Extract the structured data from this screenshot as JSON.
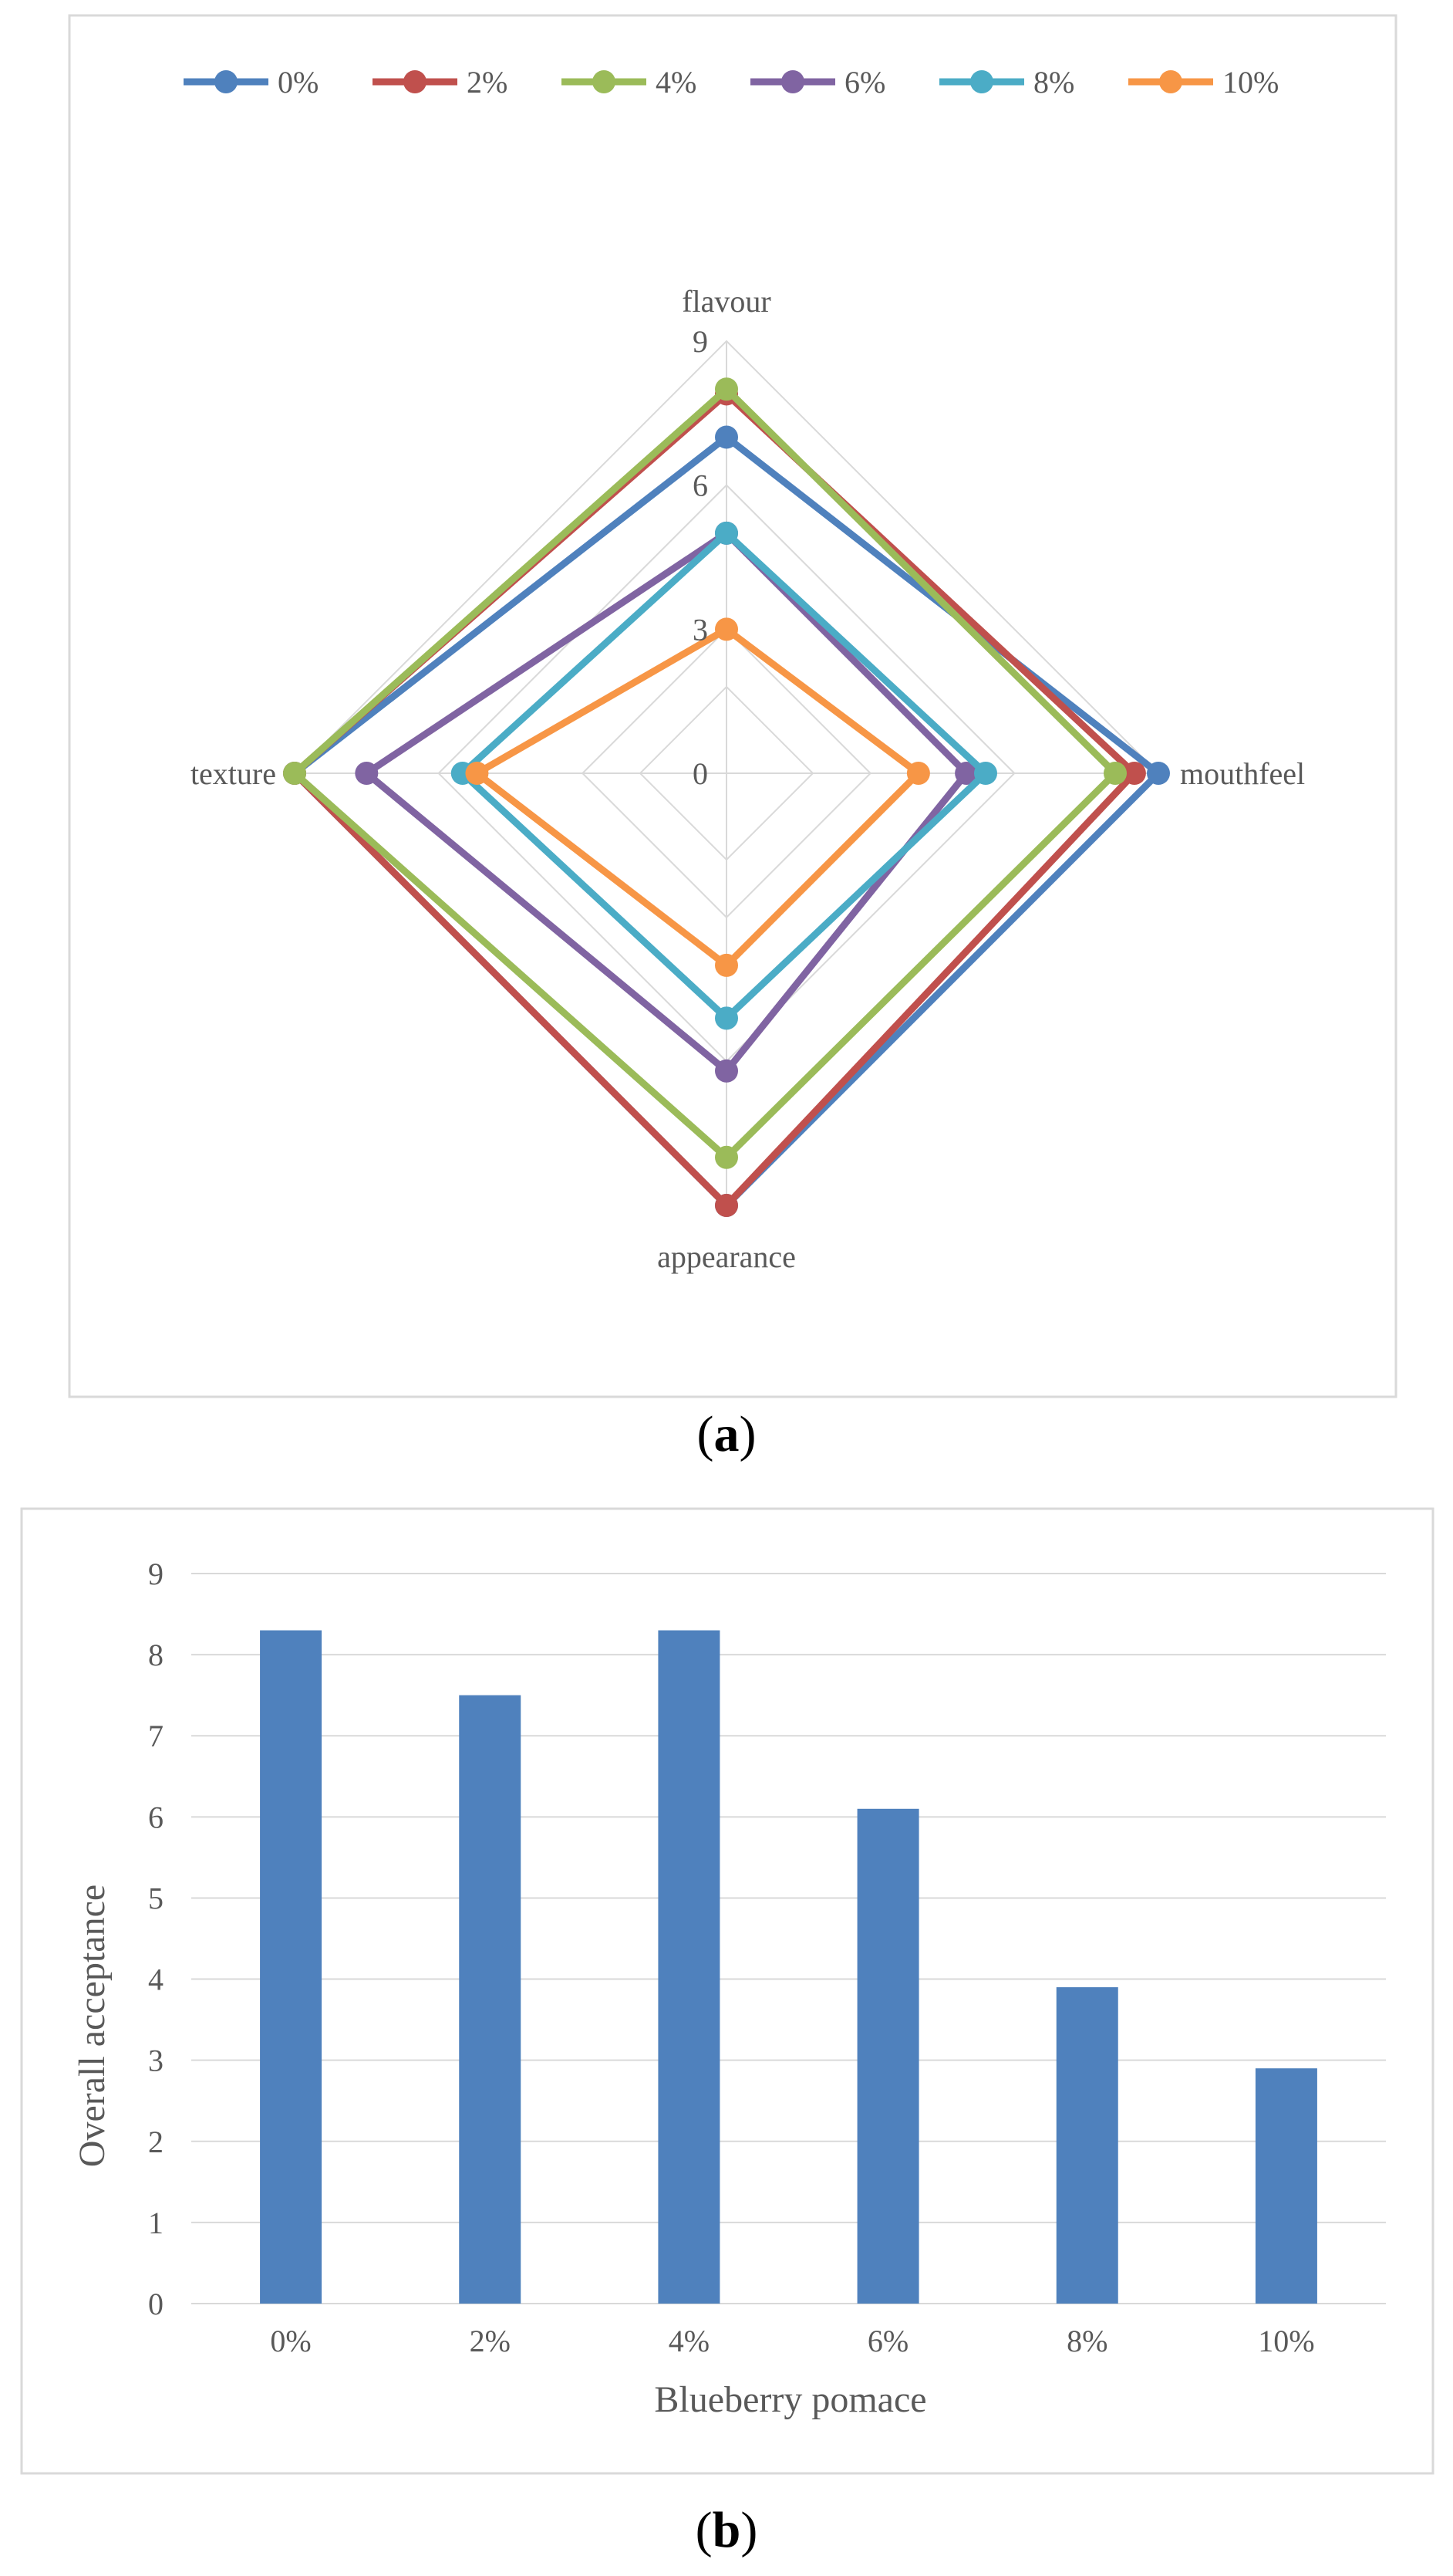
{
  "colors": {
    "0%": "#4F81BD",
    "2%": "#C0504D",
    "4%": "#9BBB59",
    "6%": "#8064A2",
    "8%": "#4BACC6",
    "10%": "#F79646",
    "bar": "#4F81BD"
  },
  "captions": {
    "a_open": "(",
    "a_letter": "a",
    "a_close": ")",
    "b_open": "(",
    "b_letter": "b",
    "b_close": ")"
  },
  "chart_data": [
    {
      "type": "radar",
      "axes": [
        "flavour",
        "mouthfeel",
        "appearance",
        "texture"
      ],
      "rmax": 9,
      "ticks": [
        0,
        3,
        6,
        9
      ],
      "legend_position": "top",
      "grid": true,
      "series": [
        {
          "name": "0%",
          "values": [
            7,
            9,
            9,
            9
          ]
        },
        {
          "name": "2%",
          "values": [
            7.9,
            8.5,
            9,
            9
          ]
        },
        {
          "name": "4%",
          "values": [
            8,
            8.1,
            8,
            9
          ]
        },
        {
          "name": "6%",
          "values": [
            5,
            5,
            6.2,
            7.5
          ]
        },
        {
          "name": "8%",
          "values": [
            5,
            5.4,
            5.1,
            5.5
          ]
        },
        {
          "name": "10%",
          "values": [
            3,
            4,
            4,
            5.2
          ]
        }
      ]
    },
    {
      "type": "bar",
      "categories": [
        "0%",
        "2%",
        "4%",
        "6%",
        "8%",
        "10%"
      ],
      "values": [
        8.3,
        7.5,
        8.3,
        6.1,
        3.9,
        2.9
      ],
      "xlabel": "Blueberry pomace",
      "ylabel": "Overall acceptance",
      "ylim": [
        0,
        9
      ],
      "ticks": [
        0,
        1,
        2,
        3,
        4,
        5,
        6,
        7,
        8,
        9
      ],
      "grid": true
    }
  ]
}
